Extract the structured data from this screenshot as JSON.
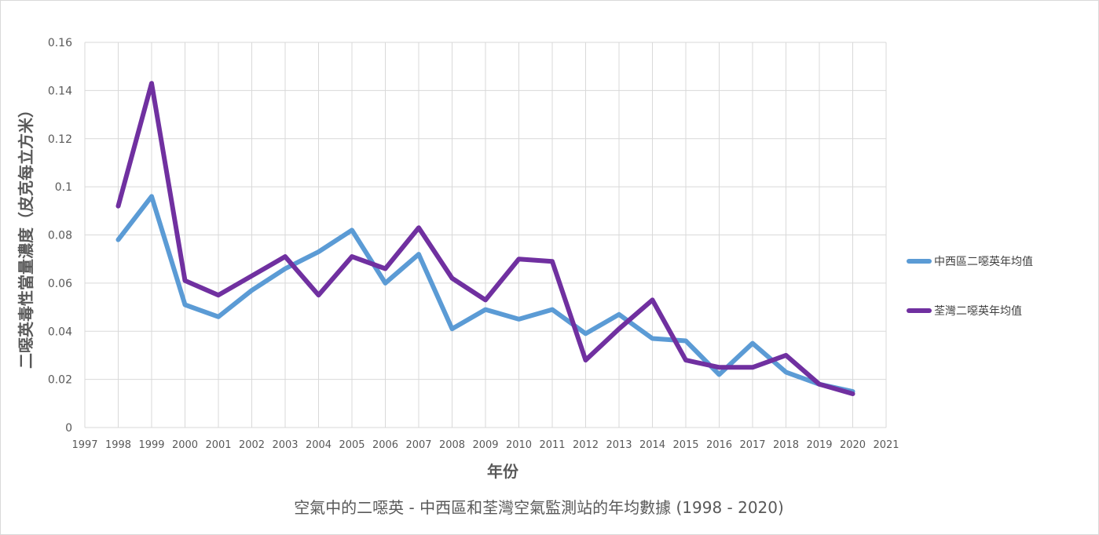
{
  "chart_data": {
    "type": "line",
    "title": "空氣中的二噁英 - 中西區和荃灣空氣監測站的年均數據 (1998 - 2020)",
    "xlabel": "年份",
    "ylabel": "二噁英毒性當量濃度（皮克每立方米）",
    "xlim": [
      1997,
      2021
    ],
    "ylim": [
      0,
      0.16
    ],
    "x_ticks": [
      "1997",
      "1998",
      "1999",
      "2000",
      "2001",
      "2002",
      "2003",
      "2004",
      "2005",
      "2006",
      "2007",
      "2008",
      "2009",
      "2010",
      "2011",
      "2012",
      "2013",
      "2014",
      "2015",
      "2016",
      "2017",
      "2018",
      "2019",
      "2020",
      "2021"
    ],
    "y_ticks": [
      "0",
      "0.02",
      "0.04",
      "0.06",
      "0.08",
      "0.1",
      "0.12",
      "0.14",
      "0.16"
    ],
    "grid": true,
    "legend_position": "right",
    "x": [
      1998,
      1999,
      2000,
      2001,
      2002,
      2003,
      2004,
      2005,
      2006,
      2007,
      2008,
      2009,
      2010,
      2011,
      2012,
      2013,
      2014,
      2015,
      2016,
      2017,
      2018,
      2019,
      2020
    ],
    "series": [
      {
        "name": "中西區二噁英年均值",
        "color": "#5b9bd5",
        "values": [
          0.078,
          0.096,
          0.051,
          0.046,
          0.057,
          0.066,
          0.073,
          0.082,
          0.06,
          0.072,
          0.041,
          0.049,
          0.045,
          0.049,
          0.039,
          0.047,
          0.037,
          0.036,
          0.022,
          0.035,
          0.023,
          0.018,
          0.015
        ]
      },
      {
        "name": "荃灣二噁英年均值",
        "color": "#7030a0",
        "values": [
          0.092,
          0.143,
          0.061,
          0.055,
          0.063,
          0.071,
          0.055,
          0.071,
          0.066,
          0.083,
          0.062,
          0.053,
          0.07,
          0.069,
          0.028,
          0.041,
          0.053,
          0.028,
          0.025,
          0.025,
          0.03,
          0.018,
          0.014
        ]
      }
    ]
  }
}
